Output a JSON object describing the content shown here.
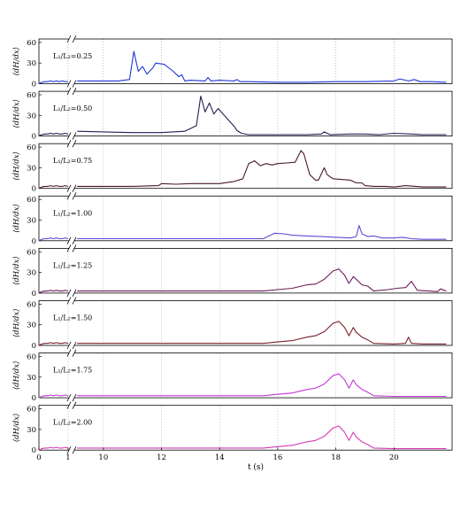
{
  "chart_data": {
    "type": "line",
    "xlabel": "t (s)",
    "ylabel": "⟨dH/dx⟩",
    "x_axis": {
      "broken": true,
      "segment1": {
        "range": [
          0,
          1.0
        ],
        "ticks": [
          0,
          1
        ]
      },
      "segment2": {
        "range": [
          9,
          22
        ],
        "ticks": [
          10,
          12,
          14,
          16,
          18,
          20
        ]
      }
    },
    "ylim": [
      0,
      65
    ],
    "yticks": [
      0,
      30,
      60
    ],
    "grid": "vertical dotted",
    "panels": [
      {
        "label": "L₁/L₂=0.25",
        "color": "#1f36d9",
        "points": [
          [
            0,
            0
          ],
          [
            0.1,
            2
          ],
          [
            0.2,
            3
          ],
          [
            0.3,
            3
          ],
          [
            0.4,
            4
          ],
          [
            0.5,
            3
          ],
          [
            0.6,
            4
          ],
          [
            0.7,
            3
          ],
          [
            0.8,
            4
          ],
          [
            0.9,
            3
          ],
          [
            1.0,
            3
          ],
          [
            9.1,
            4
          ],
          [
            10,
            4
          ],
          [
            10.5,
            4
          ],
          [
            10.9,
            6
          ],
          [
            11.05,
            47
          ],
          [
            11.2,
            18
          ],
          [
            11.35,
            25
          ],
          [
            11.5,
            14
          ],
          [
            11.7,
            23
          ],
          [
            11.8,
            30
          ],
          [
            12.1,
            28
          ],
          [
            12.4,
            18
          ],
          [
            12.6,
            10
          ],
          [
            12.7,
            13
          ],
          [
            12.8,
            4
          ],
          [
            13,
            5
          ],
          [
            13.5,
            4
          ],
          [
            13.6,
            9
          ],
          [
            13.7,
            4
          ],
          [
            14,
            5
          ],
          [
            14.5,
            4
          ],
          [
            14.6,
            6
          ],
          [
            14.7,
            3
          ],
          [
            15,
            3
          ],
          [
            16,
            2
          ],
          [
            17,
            2
          ],
          [
            18,
            3
          ],
          [
            19,
            3
          ],
          [
            20,
            4
          ],
          [
            20.2,
            7
          ],
          [
            20.5,
            4
          ],
          [
            20.7,
            6
          ],
          [
            20.9,
            3
          ],
          [
            21.3,
            3
          ],
          [
            21.8,
            2
          ]
        ]
      },
      {
        "label": "L₁/L₂=0.50",
        "color": "#202055",
        "points": [
          [
            0,
            0
          ],
          [
            0.1,
            2
          ],
          [
            0.2,
            3
          ],
          [
            0.3,
            3
          ],
          [
            0.4,
            4
          ],
          [
            0.5,
            3
          ],
          [
            0.6,
            4
          ],
          [
            0.7,
            3
          ],
          [
            0.8,
            3
          ],
          [
            0.9,
            4
          ],
          [
            1.0,
            3
          ],
          [
            9.1,
            7
          ],
          [
            10,
            6
          ],
          [
            11,
            5
          ],
          [
            12,
            5
          ],
          [
            12.8,
            7
          ],
          [
            13.2,
            15
          ],
          [
            13.35,
            58
          ],
          [
            13.5,
            35
          ],
          [
            13.65,
            48
          ],
          [
            13.8,
            32
          ],
          [
            13.95,
            40
          ],
          [
            14.2,
            28
          ],
          [
            14.5,
            14
          ],
          [
            14.6,
            8
          ],
          [
            14.75,
            4
          ],
          [
            15,
            2
          ],
          [
            15.5,
            2
          ],
          [
            16,
            2
          ],
          [
            17,
            2
          ],
          [
            17.5,
            3
          ],
          [
            17.6,
            6
          ],
          [
            17.8,
            2
          ],
          [
            18.5,
            3
          ],
          [
            19,
            3
          ],
          [
            19.5,
            2
          ],
          [
            20,
            4
          ],
          [
            20.6,
            3
          ],
          [
            21,
            2
          ],
          [
            21.8,
            2
          ]
        ]
      },
      {
        "label": "L₁/L₂=0.75",
        "color": "#4a1a24",
        "points": [
          [
            0,
            0
          ],
          [
            0.1,
            2
          ],
          [
            0.2,
            3
          ],
          [
            0.3,
            3
          ],
          [
            0.4,
            4
          ],
          [
            0.5,
            3
          ],
          [
            0.6,
            4
          ],
          [
            0.7,
            3
          ],
          [
            0.8,
            3
          ],
          [
            0.9,
            4
          ],
          [
            1.0,
            3
          ],
          [
            9.1,
            3
          ],
          [
            10,
            3
          ],
          [
            11,
            3
          ],
          [
            11.9,
            4
          ],
          [
            12,
            7
          ],
          [
            12.5,
            6
          ],
          [
            13,
            7
          ],
          [
            14,
            7
          ],
          [
            14.5,
            10
          ],
          [
            14.8,
            14
          ],
          [
            15,
            36
          ],
          [
            15.2,
            40
          ],
          [
            15.4,
            33
          ],
          [
            15.6,
            36
          ],
          [
            15.8,
            34
          ],
          [
            16,
            36
          ],
          [
            16.3,
            37
          ],
          [
            16.6,
            38
          ],
          [
            16.8,
            55
          ],
          [
            16.9,
            50
          ],
          [
            17.1,
            20
          ],
          [
            17.3,
            12
          ],
          [
            17.4,
            12
          ],
          [
            17.6,
            30
          ],
          [
            17.7,
            20
          ],
          [
            17.9,
            14
          ],
          [
            18.5,
            12
          ],
          [
            18.7,
            8
          ],
          [
            18.9,
            8
          ],
          [
            19,
            4
          ],
          [
            19.3,
            3
          ],
          [
            19.7,
            3
          ],
          [
            20,
            2
          ],
          [
            20.4,
            4
          ],
          [
            21,
            2
          ],
          [
            21.8,
            2
          ]
        ]
      },
      {
        "label": "L₁/L₂=1.00",
        "color": "#6348d8",
        "points": [
          [
            0,
            0
          ],
          [
            0.1,
            2
          ],
          [
            0.2,
            3
          ],
          [
            0.3,
            3
          ],
          [
            0.4,
            4
          ],
          [
            0.5,
            3
          ],
          [
            0.6,
            4
          ],
          [
            0.7,
            3
          ],
          [
            0.8,
            3
          ],
          [
            0.9,
            4
          ],
          [
            1.0,
            3
          ],
          [
            9.1,
            3
          ],
          [
            10,
            3
          ],
          [
            12,
            3
          ],
          [
            14,
            3
          ],
          [
            15.5,
            3
          ],
          [
            15.9,
            11
          ],
          [
            16.2,
            10
          ],
          [
            16.5,
            8
          ],
          [
            17,
            7
          ],
          [
            17.5,
            6
          ],
          [
            18,
            5
          ],
          [
            18.5,
            4
          ],
          [
            18.7,
            6
          ],
          [
            18.8,
            22
          ],
          [
            18.9,
            10
          ],
          [
            19.1,
            6
          ],
          [
            19.3,
            7
          ],
          [
            19.6,
            4
          ],
          [
            20,
            4
          ],
          [
            20.3,
            5
          ],
          [
            20.6,
            3
          ],
          [
            21,
            2
          ],
          [
            21.8,
            2
          ]
        ]
      },
      {
        "label": "L₁/L₂=1.25",
        "color": "#6a1c5a",
        "points": [
          [
            0,
            0
          ],
          [
            0.1,
            2
          ],
          [
            0.2,
            3
          ],
          [
            0.3,
            3
          ],
          [
            0.4,
            4
          ],
          [
            0.5,
            3
          ],
          [
            0.6,
            4
          ],
          [
            0.7,
            3
          ],
          [
            0.8,
            3
          ],
          [
            0.9,
            4
          ],
          [
            1.0,
            3
          ],
          [
            9.1,
            3
          ],
          [
            10,
            3
          ],
          [
            12,
            3
          ],
          [
            14,
            3
          ],
          [
            15.5,
            3
          ],
          [
            16,
            5
          ],
          [
            16.5,
            7
          ],
          [
            17,
            12
          ],
          [
            17.3,
            13
          ],
          [
            17.6,
            20
          ],
          [
            17.9,
            32
          ],
          [
            18.1,
            35
          ],
          [
            18.3,
            26
          ],
          [
            18.45,
            14
          ],
          [
            18.6,
            24
          ],
          [
            18.7,
            20
          ],
          [
            18.9,
            12
          ],
          [
            19.1,
            10
          ],
          [
            19.3,
            3
          ],
          [
            19.8,
            5
          ],
          [
            20.1,
            7
          ],
          [
            20.4,
            8
          ],
          [
            20.6,
            17
          ],
          [
            20.8,
            4
          ],
          [
            21.2,
            3
          ],
          [
            21.5,
            2
          ],
          [
            21.6,
            6
          ],
          [
            21.8,
            3
          ]
        ]
      },
      {
        "label": "L₁/L₂=1.50",
        "color": "#7a1f2a",
        "points": [
          [
            0,
            0
          ],
          [
            0.1,
            2
          ],
          [
            0.2,
            3
          ],
          [
            0.3,
            3
          ],
          [
            0.4,
            4
          ],
          [
            0.5,
            3
          ],
          [
            0.6,
            4
          ],
          [
            0.7,
            3
          ],
          [
            0.8,
            3
          ],
          [
            0.9,
            4
          ],
          [
            1.0,
            3
          ],
          [
            9.1,
            3
          ],
          [
            10,
            3
          ],
          [
            12,
            3
          ],
          [
            14,
            3
          ],
          [
            15.5,
            3
          ],
          [
            16,
            5
          ],
          [
            16.5,
            7
          ],
          [
            17,
            12
          ],
          [
            17.3,
            14
          ],
          [
            17.6,
            20
          ],
          [
            17.9,
            32
          ],
          [
            18.1,
            35
          ],
          [
            18.3,
            26
          ],
          [
            18.45,
            14
          ],
          [
            18.6,
            26
          ],
          [
            18.7,
            19
          ],
          [
            18.9,
            12
          ],
          [
            19.1,
            8
          ],
          [
            19.3,
            3
          ],
          [
            20,
            2
          ],
          [
            20.4,
            3
          ],
          [
            20.5,
            12
          ],
          [
            20.6,
            3
          ],
          [
            21,
            2
          ],
          [
            21.8,
            2
          ]
        ]
      },
      {
        "label": "L₁/L₂=1.75",
        "color": "#c43ad6",
        "points": [
          [
            0,
            0
          ],
          [
            0.1,
            2
          ],
          [
            0.2,
            3
          ],
          [
            0.3,
            3
          ],
          [
            0.4,
            4
          ],
          [
            0.5,
            3
          ],
          [
            0.6,
            4
          ],
          [
            0.7,
            3
          ],
          [
            0.8,
            3
          ],
          [
            0.9,
            4
          ],
          [
            1.0,
            3
          ],
          [
            9.1,
            3
          ],
          [
            10,
            3
          ],
          [
            12,
            3
          ],
          [
            14,
            3
          ],
          [
            15.5,
            3
          ],
          [
            16,
            5
          ],
          [
            16.5,
            7
          ],
          [
            17,
            12
          ],
          [
            17.3,
            14
          ],
          [
            17.6,
            20
          ],
          [
            17.9,
            32
          ],
          [
            18.1,
            35
          ],
          [
            18.3,
            26
          ],
          [
            18.45,
            14
          ],
          [
            18.6,
            26
          ],
          [
            18.7,
            19
          ],
          [
            18.9,
            12
          ],
          [
            19.1,
            8
          ],
          [
            19.3,
            3
          ],
          [
            20,
            2
          ],
          [
            21,
            2
          ],
          [
            21.8,
            2
          ]
        ]
      },
      {
        "label": "L₁/L₂=2.00",
        "color": "#d63ab4",
        "points": [
          [
            0,
            0
          ],
          [
            0.1,
            2
          ],
          [
            0.2,
            3
          ],
          [
            0.3,
            3
          ],
          [
            0.4,
            4
          ],
          [
            0.5,
            3
          ],
          [
            0.6,
            4
          ],
          [
            0.7,
            3
          ],
          [
            0.8,
            3
          ],
          [
            0.9,
            4
          ],
          [
            1.0,
            3
          ],
          [
            9.1,
            3
          ],
          [
            10,
            3
          ],
          [
            12,
            3
          ],
          [
            14,
            3
          ],
          [
            15.5,
            3
          ],
          [
            16,
            5
          ],
          [
            16.5,
            7
          ],
          [
            17,
            12
          ],
          [
            17.3,
            14
          ],
          [
            17.6,
            20
          ],
          [
            17.9,
            32
          ],
          [
            18.1,
            35
          ],
          [
            18.3,
            26
          ],
          [
            18.45,
            14
          ],
          [
            18.6,
            26
          ],
          [
            18.7,
            19
          ],
          [
            18.9,
            12
          ],
          [
            19.1,
            8
          ],
          [
            19.3,
            3
          ],
          [
            20,
            2
          ],
          [
            21,
            2
          ],
          [
            21.8,
            2
          ]
        ]
      }
    ]
  }
}
